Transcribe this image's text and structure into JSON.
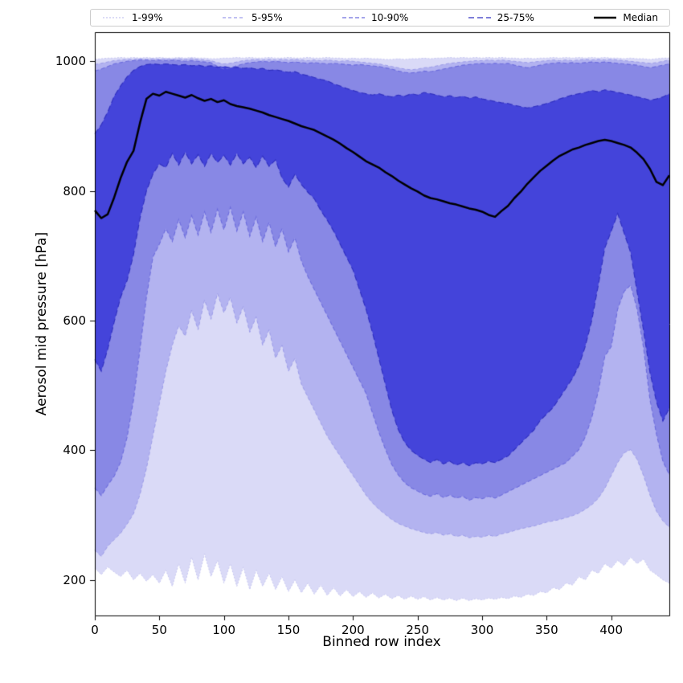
{
  "chart_data": {
    "type": "area",
    "variant": "percentile-fan-chart",
    "title": "",
    "xlabel": "Binned row index",
    "ylabel": "Aerosol mid pressure [hPa]",
    "xlim": [
      0,
      445
    ],
    "ylim": [
      145,
      1045
    ],
    "x_ticks": [
      0,
      50,
      100,
      150,
      200,
      250,
      300,
      350,
      400
    ],
    "y_ticks": [
      200,
      400,
      600,
      800,
      1000
    ],
    "legend_position": "top",
    "grid": false,
    "x": [
      0,
      5,
      10,
      15,
      20,
      25,
      30,
      35,
      40,
      45,
      50,
      55,
      60,
      65,
      70,
      75,
      80,
      85,
      90,
      95,
      100,
      105,
      110,
      115,
      120,
      125,
      130,
      135,
      140,
      145,
      150,
      155,
      160,
      165,
      170,
      175,
      180,
      185,
      190,
      195,
      200,
      205,
      210,
      215,
      220,
      225,
      230,
      235,
      240,
      245,
      250,
      255,
      260,
      265,
      270,
      275,
      280,
      285,
      290,
      295,
      300,
      305,
      310,
      315,
      320,
      325,
      330,
      335,
      340,
      345,
      350,
      355,
      360,
      365,
      370,
      375,
      380,
      385,
      390,
      395,
      400,
      405,
      410,
      415,
      420,
      425,
      430,
      435,
      440,
      445
    ],
    "percentiles": {
      "p01": [
        218,
        208,
        220,
        212,
        205,
        215,
        200,
        210,
        198,
        208,
        195,
        215,
        190,
        225,
        195,
        235,
        200,
        240,
        205,
        230,
        195,
        225,
        190,
        220,
        185,
        215,
        190,
        210,
        185,
        205,
        182,
        200,
        180,
        195,
        178,
        192,
        176,
        188,
        175,
        185,
        174,
        182,
        173,
        180,
        172,
        178,
        171,
        176,
        170,
        175,
        170,
        174,
        169,
        173,
        169,
        172,
        168,
        172,
        168,
        171,
        169,
        172,
        170,
        173,
        171,
        175,
        173,
        178,
        176,
        182,
        180,
        188,
        185,
        195,
        192,
        205,
        200,
        215,
        210,
        225,
        218,
        230,
        222,
        235,
        225,
        232,
        215,
        208,
        200,
        195
      ],
      "p05": [
        246,
        236,
        252,
        262,
        272,
        286,
        302,
        332,
        372,
        422,
        472,
        522,
        562,
        592,
        576,
        616,
        586,
        632,
        602,
        642,
        612,
        636,
        596,
        622,
        582,
        606,
        562,
        586,
        542,
        562,
        522,
        542,
        502,
        482,
        462,
        442,
        422,
        406,
        391,
        376,
        361,
        346,
        331,
        319,
        309,
        301,
        293,
        287,
        283,
        279,
        276,
        273,
        271,
        273,
        269,
        271,
        267,
        269,
        265,
        267,
        266,
        269,
        267,
        271,
        273,
        276,
        279,
        281,
        283,
        286,
        289,
        291,
        293,
        296,
        299,
        303,
        309,
        316,
        326,
        341,
        361,
        381,
        396,
        401,
        386,
        361,
        331,
        306,
        291,
        281
      ],
      "p10": [
        342,
        330,
        346,
        360,
        382,
        420,
        478,
        556,
        636,
        698,
        718,
        742,
        722,
        756,
        728,
        762,
        732,
        768,
        736,
        772,
        740,
        775,
        738,
        768,
        730,
        760,
        722,
        752,
        714,
        742,
        706,
        728,
        692,
        668,
        648,
        628,
        608,
        588,
        568,
        548,
        528,
        508,
        488,
        458,
        428,
        402,
        378,
        362,
        350,
        342,
        337,
        332,
        329,
        333,
        327,
        331,
        326,
        329,
        323,
        327,
        325,
        329,
        326,
        331,
        336,
        341,
        346,
        351,
        356,
        361,
        366,
        371,
        376,
        381,
        391,
        401,
        421,
        451,
        491,
        545,
        560,
        618,
        645,
        655,
        618,
        558,
        478,
        425,
        383,
        362
      ],
      "p25": [
        540,
        522,
        556,
        598,
        636,
        662,
        702,
        758,
        800,
        826,
        842,
        836,
        858,
        840,
        860,
        842,
        856,
        838,
        858,
        844,
        855,
        840,
        858,
        842,
        852,
        836,
        854,
        838,
        848,
        820,
        806,
        826,
        810,
        798,
        788,
        770,
        755,
        738,
        718,
        698,
        678,
        648,
        618,
        582,
        542,
        502,
        462,
        432,
        412,
        400,
        392,
        386,
        381,
        386,
        379,
        383,
        377,
        381,
        376,
        381,
        379,
        383,
        381,
        386,
        391,
        401,
        411,
        421,
        431,
        446,
        456,
        466,
        481,
        496,
        511,
        531,
        561,
        601,
        655,
        712,
        738,
        765,
        735,
        705,
        645,
        585,
        520,
        475,
        445,
        465
      ],
      "p50": [
        770,
        758,
        764,
        790,
        820,
        845,
        862,
        905,
        942,
        950,
        947,
        953,
        950,
        947,
        944,
        948,
        943,
        939,
        942,
        937,
        940,
        934,
        931,
        929,
        927,
        924,
        921,
        917,
        914,
        911,
        908,
        904,
        900,
        897,
        894,
        889,
        884,
        879,
        873,
        866,
        860,
        853,
        846,
        841,
        836,
        829,
        823,
        816,
        810,
        804,
        799,
        793,
        789,
        787,
        784,
        781,
        779,
        776,
        773,
        771,
        768,
        763,
        760,
        769,
        777,
        789,
        799,
        811,
        821,
        831,
        839,
        847,
        854,
        859,
        864,
        867,
        871,
        874,
        877,
        879,
        877,
        874,
        871,
        867,
        859,
        849,
        834,
        814,
        809,
        824
      ],
      "p75": [
        888,
        902,
        922,
        946,
        962,
        976,
        986,
        992,
        995,
        996,
        995,
        996,
        995,
        994,
        995,
        993,
        994,
        992,
        993,
        991,
        992,
        990,
        991,
        989,
        990,
        988,
        989,
        986,
        987,
        985,
        983,
        984,
        980,
        978,
        975,
        972,
        970,
        965,
        962,
        958,
        955,
        952,
        950,
        948,
        950,
        947,
        945,
        948,
        946,
        950,
        948,
        952,
        950,
        948,
        945,
        947,
        944,
        946,
        943,
        945,
        942,
        940,
        938,
        936,
        935,
        932,
        930,
        928,
        930,
        932,
        935,
        938,
        942,
        945,
        948,
        950,
        952,
        955,
        953,
        956,
        954,
        952,
        950,
        948,
        945,
        943,
        940,
        942,
        945,
        950
      ],
      "p90": [
        985,
        988,
        992,
        996,
        998,
        1000,
        1001,
        1002,
        1002,
        1001,
        1002,
        1001,
        1002,
        1001,
        1000,
        1001,
        1000,
        999,
        998,
        992,
        988,
        990,
        993,
        996,
        998,
        999,
        1000,
        999,
        1000,
        999,
        998,
        999,
        998,
        997,
        998,
        997,
        996,
        997,
        996,
        995,
        994,
        995,
        994,
        993,
        992,
        990,
        988,
        985,
        983,
        982,
        983,
        985,
        984,
        986,
        988,
        990,
        992,
        994,
        995,
        996,
        997,
        996,
        997,
        996,
        997,
        994,
        992,
        990,
        992,
        994,
        996,
        997,
        998,
        997,
        998,
        997,
        998,
        999,
        998,
        999,
        998,
        997,
        996,
        995,
        994,
        992,
        990,
        992,
        994,
        996
      ],
      "p95": [
        995,
        997,
        999,
        1001,
        1002,
        1003,
        1003,
        1004,
        1003,
        1004,
        1003,
        1004,
        1003,
        1004,
        1003,
        1004,
        1003,
        1002,
        1001,
        998,
        996,
        997,
        999,
        1001,
        1002,
        1003,
        1002,
        1003,
        1002,
        1003,
        1002,
        1003,
        1002,
        1001,
        1002,
        1001,
        1002,
        1001,
        1000,
        1001,
        1000,
        999,
        998,
        997,
        996,
        994,
        992,
        990,
        988,
        987,
        988,
        990,
        991,
        993,
        995,
        997,
        998,
        999,
        1000,
        1001,
        1001,
        1002,
        1001,
        1002,
        1001,
        1000,
        999,
        998,
        999,
        1000,
        1001,
        1002,
        1001,
        1002,
        1001,
        1002,
        1003,
        1002,
        1003,
        1002,
        1003,
        1002,
        1001,
        1000,
        999,
        998,
        997,
        998,
        1000,
        1002
      ],
      "p99": [
        1003,
        1004,
        1005,
        1005,
        1006,
        1005,
        1006,
        1005,
        1006,
        1005,
        1006,
        1005,
        1005,
        1006,
        1005,
        1006,
        1005,
        1005,
        1004,
        1004,
        1005,
        1005,
        1006,
        1005,
        1006,
        1005,
        1005,
        1006,
        1005,
        1005,
        1006,
        1005,
        1005,
        1006,
        1005,
        1005,
        1006,
        1005,
        1005,
        1004,
        1005,
        1004,
        1005,
        1004,
        1004,
        1003,
        1003,
        1004,
        1003,
        1004,
        1004,
        1005,
        1004,
        1005,
        1005,
        1006,
        1005,
        1006,
        1005,
        1006,
        1005,
        1006,
        1005,
        1006,
        1005,
        1005,
        1004,
        1005,
        1004,
        1005,
        1005,
        1006,
        1005,
        1006,
        1005,
        1006,
        1005,
        1006,
        1005,
        1006,
        1005,
        1005,
        1004,
        1005,
        1004,
        1004,
        1003,
        1004,
        1005,
        1005
      ]
    },
    "bands": [
      {
        "label": "1-99%",
        "lower": "p01",
        "upper": "p99",
        "fill": "#dadaf7",
        "edge": "#c6c6f0",
        "dash": [
          2,
          2
        ],
        "line_width": 1
      },
      {
        "label": "5-95%",
        "lower": "p05",
        "upper": "p95",
        "fill": "#b3b3f0",
        "edge": "#9c9ce9",
        "dash": [
          4,
          3
        ],
        "line_width": 1
      },
      {
        "label": "10-90%",
        "lower": "p10",
        "upper": "p90",
        "fill": "#8888e5",
        "edge": "#6d6ddd",
        "dash": [
          5,
          3
        ],
        "line_width": 1.1
      },
      {
        "label": "25-75%",
        "lower": "p25",
        "upper": "p75",
        "fill": "#4444da",
        "edge": "#3131c2",
        "dash": [
          7,
          4
        ],
        "line_width": 1.2
      }
    ],
    "median": {
      "label": "Median",
      "key": "p50",
      "color": "#000000",
      "line_width": 2.5
    }
  }
}
